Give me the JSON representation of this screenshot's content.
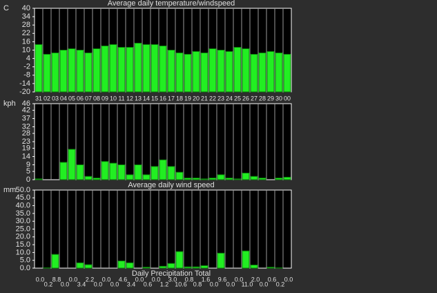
{
  "chart_data": [
    {
      "type": "bar",
      "title": "Average daily temperature/windspeed",
      "y_label": "C",
      "categories": [
        "31",
        "02",
        "03",
        "04",
        "05",
        "06",
        "07",
        "08",
        "09",
        "10",
        "11",
        "12",
        "13",
        "14",
        "15",
        "16",
        "17",
        "18",
        "19",
        "20",
        "21",
        "22",
        "23",
        "24",
        "25",
        "26",
        "27",
        "28",
        "29",
        "30",
        "00"
      ],
      "values": [
        14,
        7,
        8,
        10,
        11,
        10,
        8,
        11,
        13,
        14,
        12,
        12,
        15,
        14,
        14,
        13,
        10,
        8,
        7,
        9,
        8,
        11,
        10,
        9,
        12,
        11,
        7,
        8,
        9,
        8,
        7
      ],
      "color": "#22ee22",
      "ylim": [
        -20,
        40
      ],
      "yticks": [
        -20,
        -14,
        -8,
        -2,
        4,
        10,
        16,
        22,
        28,
        34,
        40
      ]
    },
    {
      "type": "bar",
      "title": "Average daily wind speed",
      "y_label": "kph",
      "values": [
        0.5,
        0,
        0,
        10.5,
        18.4,
        9,
        2,
        1,
        11,
        10,
        9,
        3,
        9,
        3,
        8,
        12,
        8,
        4.5,
        1,
        1,
        0.5,
        1,
        3,
        1,
        0.5,
        4,
        2,
        1,
        0,
        1,
        1.5
      ],
      "color": "#22ee22",
      "ylim": [
        0,
        46
      ],
      "yticks": [
        0,
        5,
        9,
        14,
        19,
        23,
        28,
        32,
        37,
        42,
        46
      ]
    },
    {
      "type": "bar",
      "title": "Daily Precipitation Total",
      "y_label": "mm",
      "values": [
        0,
        0.2,
        8.8,
        0,
        0,
        3.4,
        2.2,
        0,
        0,
        0,
        4.6,
        3.4,
        0,
        0.6,
        0,
        1.2,
        3,
        10.6,
        0.8,
        0.8,
        1.6,
        0,
        9.6,
        0,
        0,
        11,
        2,
        0,
        0.6,
        0.2,
        0
      ],
      "value_labels": [
        "0.0",
        "0.2",
        "8.8",
        "0.0",
        "0.0",
        "3.4",
        "2.2",
        "0.0",
        "0.0",
        "0.0",
        "4.6",
        "3.4",
        "0.0",
        "0.6",
        "0.0",
        "1.2",
        "3.0",
        "10.6",
        "0.8",
        "0.8",
        "1.6",
        "0.0",
        "9.6",
        "0.0",
        "0.0",
        "11.0",
        "2.0",
        "0.0",
        "0.6",
        "0.2",
        "0.0"
      ],
      "color": "#22ee22",
      "ylim": [
        0,
        50
      ],
      "yticks": [
        {
          "value": 0,
          "label": "0.0"
        },
        {
          "value": 5,
          "label": "5.0"
        },
        {
          "value": 10,
          "label": "10.0"
        },
        {
          "value": 15,
          "label": "15.0"
        },
        {
          "value": 20,
          "label": "20.0"
        },
        {
          "value": 25,
          "label": "25.0"
        },
        {
          "value": 30,
          "label": "30.0"
        },
        {
          "value": 35,
          "label": "35.0"
        },
        {
          "value": 40,
          "label": "40.0"
        },
        {
          "value": 45,
          "label": "45.0"
        },
        {
          "value": 50,
          "label": "50.0"
        }
      ]
    }
  ]
}
